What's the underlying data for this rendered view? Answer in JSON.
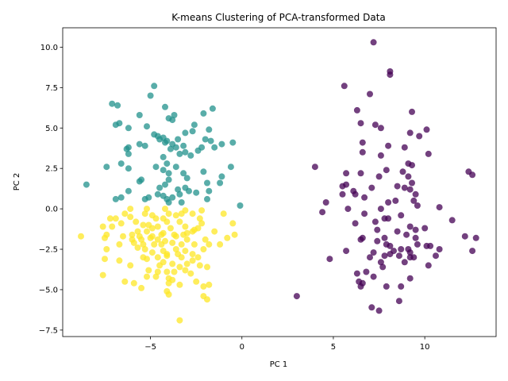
{
  "chart_data": {
    "type": "scatter",
    "title": "K-means Clustering of PCA-transformed Data",
    "xlabel": "PC 1",
    "ylabel": "PC 2",
    "xlim": [
      -9.8,
      13.9
    ],
    "ylim": [
      -7.9,
      11.2
    ],
    "xticks": [
      -5,
      0,
      5,
      10
    ],
    "yticks": [
      -7.5,
      -5.0,
      -2.5,
      0.0,
      2.5,
      5.0,
      7.5,
      10.0
    ],
    "xtick_labels": [
      "−5",
      "0",
      "5",
      "10"
    ],
    "ytick_labels": [
      "−7.5",
      "−5.0",
      "−2.5",
      "0.0",
      "2.5",
      "5.0",
      "7.5",
      "10.0"
    ],
    "grid": false,
    "legend": "none",
    "series": [
      {
        "color": "#440154",
        "points": [
          [
            7.2,
            10.3
          ],
          [
            8.1,
            8.5
          ],
          [
            8.1,
            8.3
          ],
          [
            5.6,
            7.6
          ],
          [
            7.0,
            7.1
          ],
          [
            6.3,
            6.1
          ],
          [
            9.3,
            6.0
          ],
          [
            6.5,
            5.3
          ],
          [
            7.3,
            5.2
          ],
          [
            7.6,
            5.0
          ],
          [
            9.2,
            4.7
          ],
          [
            10.1,
            4.9
          ],
          [
            9.7,
            4.5
          ],
          [
            6.6,
            4.1
          ],
          [
            8.0,
            3.9
          ],
          [
            8.9,
            3.8
          ],
          [
            6.6,
            3.5
          ],
          [
            10.2,
            3.4
          ],
          [
            7.6,
            3.3
          ],
          [
            4.0,
            2.6
          ],
          [
            9.1,
            2.8
          ],
          [
            9.3,
            2.7
          ],
          [
            7.9,
            2.4
          ],
          [
            8.8,
            2.3
          ],
          [
            5.7,
            2.2
          ],
          [
            6.5,
            2.2
          ],
          [
            9.1,
            2.0
          ],
          [
            12.4,
            2.3
          ],
          [
            12.6,
            2.1
          ],
          [
            7.5,
            2.0
          ],
          [
            5.5,
            1.4
          ],
          [
            5.7,
            1.5
          ],
          [
            8.5,
            1.4
          ],
          [
            8.9,
            1.3
          ],
          [
            9.3,
            1.6
          ],
          [
            7.1,
            1.3
          ],
          [
            6.1,
            1.1
          ],
          [
            9.2,
            1.2
          ],
          [
            5.5,
            0.9
          ],
          [
            6.2,
            0.9
          ],
          [
            6.7,
            0.7
          ],
          [
            9.4,
            0.5
          ],
          [
            9.5,
            0.9
          ],
          [
            4.6,
            0.4
          ],
          [
            8.0,
            0.4
          ],
          [
            8.4,
            0.5
          ],
          [
            10.8,
            0.1
          ],
          [
            7.6,
            0.0
          ],
          [
            4.4,
            -0.2
          ],
          [
            5.8,
            0.0
          ],
          [
            6.7,
            -0.3
          ],
          [
            8.7,
            -0.4
          ],
          [
            9.6,
            0.2
          ],
          [
            7.8,
            -0.6
          ],
          [
            8.0,
            -0.6
          ],
          [
            7.3,
            -0.8
          ],
          [
            6.2,
            -0.9
          ],
          [
            11.5,
            -0.7
          ],
          [
            9.2,
            -1.1
          ],
          [
            9.5,
            -1.3
          ],
          [
            7.4,
            -1.3
          ],
          [
            8.5,
            -1.4
          ],
          [
            10.0,
            -1.2
          ],
          [
            9.0,
            -1.6
          ],
          [
            7.8,
            -1.8
          ],
          [
            9.5,
            -1.8
          ],
          [
            6.6,
            -1.8
          ],
          [
            6.5,
            -1.9
          ],
          [
            12.2,
            -1.7
          ],
          [
            12.8,
            -1.8
          ],
          [
            7.4,
            -2.0
          ],
          [
            9.6,
            -2.2
          ],
          [
            10.3,
            -2.3
          ],
          [
            7.9,
            -2.2
          ],
          [
            8.1,
            -2.3
          ],
          [
            9.1,
            -2.5
          ],
          [
            8.7,
            -2.5
          ],
          [
            10.8,
            -2.5
          ],
          [
            10.1,
            -2.3
          ],
          [
            5.7,
            -2.6
          ],
          [
            12.6,
            -2.6
          ],
          [
            7.2,
            -2.7
          ],
          [
            8.1,
            -2.8
          ],
          [
            8.3,
            -2.6
          ],
          [
            7.8,
            -2.9
          ],
          [
            8.6,
            -2.9
          ],
          [
            9.2,
            -2.7
          ],
          [
            9.4,
            -3.0
          ],
          [
            9.2,
            -3.0
          ],
          [
            10.6,
            -2.9
          ],
          [
            7.0,
            -3.0
          ],
          [
            4.8,
            -3.1
          ],
          [
            7.6,
            -3.3
          ],
          [
            7.7,
            -3.6
          ],
          [
            10.2,
            -3.5
          ],
          [
            8.9,
            -3.3
          ],
          [
            6.3,
            -4.0
          ],
          [
            6.8,
            -3.9
          ],
          [
            6.4,
            -4.5
          ],
          [
            6.6,
            -4.6
          ],
          [
            6.5,
            -4.8
          ],
          [
            7.2,
            -4.2
          ],
          [
            9.2,
            -4.3
          ],
          [
            7.9,
            -4.8
          ],
          [
            8.7,
            -4.8
          ],
          [
            3.0,
            -5.4
          ],
          [
            8.6,
            -5.7
          ],
          [
            7.1,
            -6.1
          ],
          [
            7.5,
            -6.3
          ]
        ]
      },
      {
        "color": "#21918c",
        "points": [
          [
            -4.8,
            7.6
          ],
          [
            -5.0,
            7.0
          ],
          [
            -7.1,
            6.5
          ],
          [
            -6.8,
            6.4
          ],
          [
            -4.2,
            6.3
          ],
          [
            -5.6,
            5.8
          ],
          [
            -3.7,
            5.8
          ],
          [
            -1.6,
            6.2
          ],
          [
            -2.1,
            5.9
          ],
          [
            -6.9,
            5.2
          ],
          [
            -6.7,
            5.3
          ],
          [
            -4.0,
            5.6
          ],
          [
            -3.8,
            5.5
          ],
          [
            -6.2,
            5.0
          ],
          [
            -5.2,
            5.1
          ],
          [
            -2.6,
            5.2
          ],
          [
            -4.8,
            4.6
          ],
          [
            -4.6,
            4.5
          ],
          [
            -3.1,
            4.7
          ],
          [
            -2.7,
            4.8
          ],
          [
            -1.8,
            4.9
          ],
          [
            -3.5,
            4.3
          ],
          [
            -4.3,
            4.4
          ],
          [
            -4.5,
            4.3
          ],
          [
            -5.6,
            4.0
          ],
          [
            -4.2,
            4.1
          ],
          [
            -4.1,
            4.2
          ],
          [
            -3.8,
            4.0
          ],
          [
            -2.0,
            4.3
          ],
          [
            -1.7,
            4.2
          ],
          [
            -0.5,
            4.1
          ],
          [
            -6.2,
            3.8
          ],
          [
            -6.3,
            3.7
          ],
          [
            -5.3,
            3.9
          ],
          [
            -3.9,
            3.7
          ],
          [
            -3.6,
            3.8
          ],
          [
            -3.2,
            3.9
          ],
          [
            -2.2,
            3.8
          ],
          [
            -1.5,
            3.8
          ],
          [
            -1.1,
            4.0
          ],
          [
            -3.1,
            3.5
          ],
          [
            -3.4,
            3.4
          ],
          [
            -6.2,
            3.4
          ],
          [
            -2.4,
            3.6
          ],
          [
            -4.3,
            3.2
          ],
          [
            -2.8,
            3.3
          ],
          [
            -6.6,
            2.8
          ],
          [
            -7.4,
            2.6
          ],
          [
            -4.7,
            2.6
          ],
          [
            -3.6,
            2.6
          ],
          [
            -6.2,
            2.5
          ],
          [
            -4.1,
            2.8
          ],
          [
            -4.3,
            2.4
          ],
          [
            -4.0,
            2.2
          ],
          [
            -3.2,
            2.2
          ],
          [
            -2.1,
            2.3
          ],
          [
            -1.1,
            2.0
          ],
          [
            -0.6,
            2.6
          ],
          [
            -5.6,
            1.7
          ],
          [
            -5.5,
            1.8
          ],
          [
            -4.0,
            1.8
          ],
          [
            -3.0,
            1.9
          ],
          [
            -1.2,
            1.6
          ],
          [
            -8.5,
            1.5
          ],
          [
            -4.2,
            1.5
          ],
          [
            -4.5,
            1.3
          ],
          [
            -3.5,
            1.2
          ],
          [
            -3.1,
            1.3
          ],
          [
            -2.9,
            1.1
          ],
          [
            -6.2,
            1.1
          ],
          [
            -1.9,
            1.6
          ],
          [
            -1.8,
            1.1
          ],
          [
            -2.5,
            1.0
          ],
          [
            -3.4,
            0.9
          ],
          [
            -4.6,
            0.9
          ],
          [
            -4.3,
            0.8
          ],
          [
            -4.1,
            0.6
          ],
          [
            -3.8,
            0.7
          ],
          [
            -5.1,
            0.7
          ],
          [
            -6.6,
            0.7
          ],
          [
            -6.9,
            0.6
          ],
          [
            -4.0,
            0.4
          ],
          [
            -3.3,
            0.4
          ],
          [
            -1.9,
            0.6
          ],
          [
            -0.1,
            0.2
          ],
          [
            -5.3,
            0.6
          ]
        ]
      },
      {
        "color": "#fde725",
        "points": [
          [
            -6.1,
            0.0
          ],
          [
            -5.2,
            0.0
          ],
          [
            -4.2,
            0.0
          ],
          [
            -3.1,
            -0.1
          ],
          [
            -2.2,
            -0.1
          ],
          [
            -7.2,
            -0.6
          ],
          [
            -6.9,
            -0.6
          ],
          [
            -6.4,
            -0.3
          ],
          [
            -6.1,
            -0.5
          ],
          [
            -5.3,
            -0.3
          ],
          [
            -4.9,
            -0.4
          ],
          [
            -4.7,
            -0.6
          ],
          [
            -4.3,
            -0.6
          ],
          [
            -4.0,
            -0.3
          ],
          [
            -3.6,
            -0.4
          ],
          [
            -3.3,
            -0.3
          ],
          [
            -2.7,
            -0.3
          ],
          [
            -2.3,
            -0.6
          ],
          [
            -1.0,
            -0.3
          ],
          [
            -6.6,
            -0.9
          ],
          [
            -5.8,
            -0.8
          ],
          [
            -5.1,
            -1.0
          ],
          [
            -4.1,
            -0.8
          ],
          [
            -3.4,
            -0.8
          ],
          [
            -2.2,
            -0.9
          ],
          [
            -0.5,
            -0.9
          ],
          [
            -7.6,
            -1.1
          ],
          [
            -7.1,
            -1.1
          ],
          [
            -5.4,
            -1.0
          ],
          [
            -4.9,
            -1.2
          ],
          [
            -4.6,
            -1.1
          ],
          [
            -3.9,
            -1.2
          ],
          [
            -3.1,
            -1.1
          ],
          [
            -2.4,
            -1.2
          ],
          [
            -2.6,
            -1.3
          ],
          [
            -5.7,
            -1.4
          ],
          [
            -5.2,
            -1.4
          ],
          [
            -4.3,
            -1.5
          ],
          [
            -3.7,
            -1.6
          ],
          [
            -3.0,
            -1.5
          ],
          [
            -2.7,
            -1.4
          ],
          [
            -1.5,
            -1.4
          ],
          [
            -7.4,
            -1.6
          ],
          [
            -6.5,
            -1.7
          ],
          [
            -6.0,
            -1.6
          ],
          [
            -5.6,
            -1.7
          ],
          [
            -4.9,
            -1.7
          ],
          [
            -4.4,
            -1.6
          ],
          [
            -3.6,
            -1.7
          ],
          [
            -3.2,
            -1.6
          ],
          [
            -0.4,
            -1.6
          ],
          [
            -8.8,
            -1.7
          ],
          [
            -7.5,
            -1.8
          ],
          [
            -6.0,
            -1.9
          ],
          [
            -5.5,
            -1.9
          ],
          [
            -5.0,
            -1.8
          ],
          [
            -4.6,
            -1.9
          ],
          [
            -4.2,
            -2.0
          ],
          [
            -3.0,
            -1.9
          ],
          [
            -2.0,
            -1.9
          ],
          [
            -0.8,
            -1.8
          ],
          [
            -6.7,
            -2.2
          ],
          [
            -5.9,
            -2.1
          ],
          [
            -5.4,
            -2.2
          ],
          [
            -4.8,
            -2.2
          ],
          [
            -4.4,
            -2.2
          ],
          [
            -3.8,
            -2.1
          ],
          [
            -3.3,
            -2.2
          ],
          [
            -2.6,
            -2.2
          ],
          [
            -1.8,
            -2.2
          ],
          [
            -1.2,
            -2.2
          ],
          [
            -5.7,
            -2.4
          ],
          [
            -5.3,
            -2.5
          ],
          [
            -4.3,
            -2.6
          ],
          [
            -3.6,
            -2.5
          ],
          [
            -3.1,
            -2.6
          ],
          [
            -2.1,
            -2.5
          ],
          [
            -7.4,
            -2.5
          ],
          [
            -4.9,
            -2.7
          ],
          [
            -4.1,
            -2.8
          ],
          [
            -3.5,
            -2.8
          ],
          [
            -2.7,
            -2.8
          ],
          [
            -5.4,
            -3.0
          ],
          [
            -5.2,
            -3.1
          ],
          [
            -4.6,
            -3.0
          ],
          [
            -4.1,
            -2.9
          ],
          [
            -3.3,
            -3.0
          ],
          [
            -2.4,
            -3.0
          ],
          [
            -7.5,
            -3.1
          ],
          [
            -6.7,
            -3.2
          ],
          [
            -4.3,
            -3.3
          ],
          [
            -3.8,
            -3.4
          ],
          [
            -3.0,
            -3.4
          ],
          [
            -2.7,
            -3.2
          ],
          [
            -4.5,
            -3.5
          ],
          [
            -3.4,
            -3.6
          ],
          [
            -2.3,
            -3.5
          ],
          [
            -1.9,
            -3.6
          ],
          [
            -6.1,
            -3.5
          ],
          [
            -5.1,
            -3.8
          ],
          [
            -4.6,
            -3.9
          ],
          [
            -4.1,
            -3.9
          ],
          [
            -3.7,
            -3.9
          ],
          [
            -3.1,
            -3.8
          ],
          [
            -2.8,
            -4.0
          ],
          [
            -7.6,
            -4.1
          ],
          [
            -5.2,
            -4.2
          ],
          [
            -4.7,
            -4.2
          ],
          [
            -4.0,
            -4.3
          ],
          [
            -3.8,
            -4.4
          ],
          [
            -2.5,
            -4.5
          ],
          [
            -6.4,
            -4.5
          ],
          [
            -5.9,
            -4.6
          ],
          [
            -4.0,
            -4.6
          ],
          [
            -3.4,
            -4.7
          ],
          [
            -1.8,
            -4.7
          ],
          [
            -2.1,
            -4.8
          ],
          [
            -5.5,
            -4.9
          ],
          [
            -4.1,
            -5.1
          ],
          [
            -4.0,
            -5.3
          ],
          [
            -2.1,
            -5.4
          ],
          [
            -1.9,
            -5.6
          ],
          [
            -3.4,
            -6.9
          ]
        ]
      }
    ]
  }
}
